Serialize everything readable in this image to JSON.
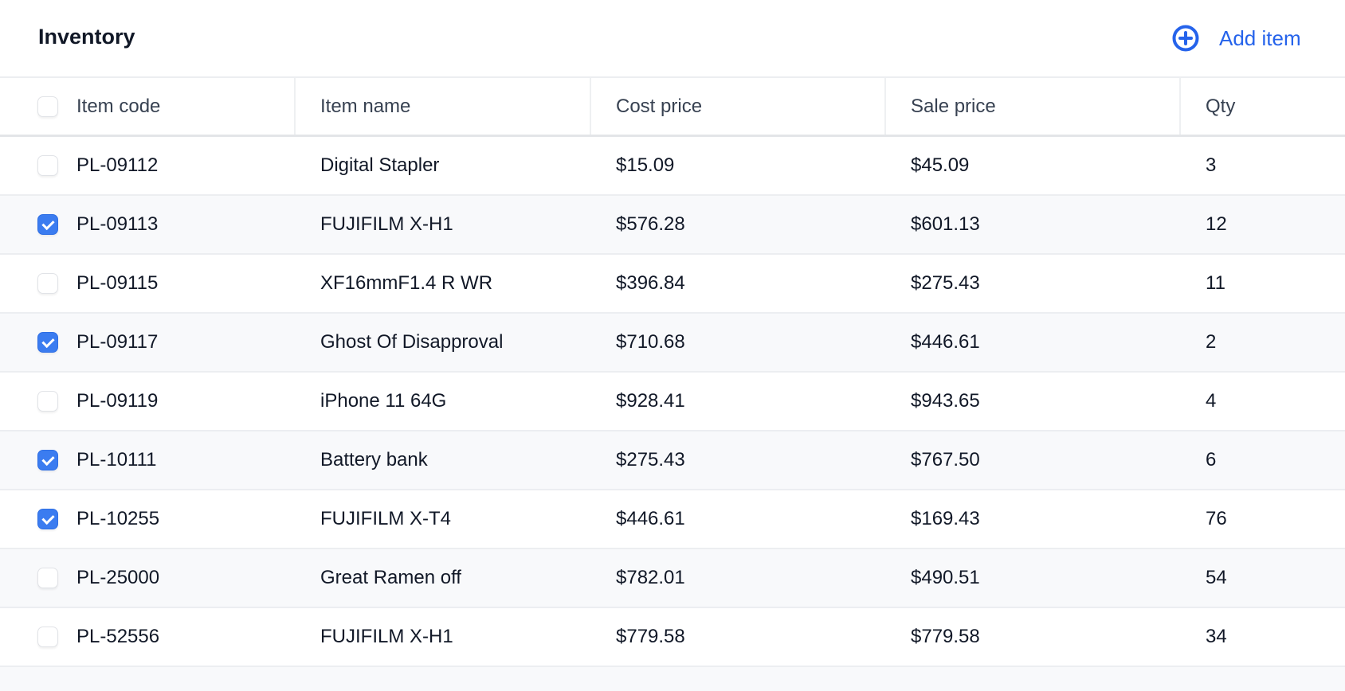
{
  "header": {
    "title": "Inventory",
    "add_label": "Add item",
    "add_icon": "plus-circle-icon",
    "accent": "#2563eb"
  },
  "table": {
    "columns": [
      "Item code",
      "Item name",
      "Cost price",
      "Sale price",
      "Qty"
    ],
    "rows": [
      {
        "checked": false,
        "code": "PL-09112",
        "name": "Digital Stapler",
        "cost": "$15.09",
        "sale": "$45.09",
        "qty": "3"
      },
      {
        "checked": true,
        "code": "PL-09113",
        "name": "FUJIFILM X-H1",
        "cost": "$576.28",
        "sale": "$601.13",
        "qty": "12"
      },
      {
        "checked": false,
        "code": "PL-09115",
        "name": "XF16mmF1.4 R WR",
        "cost": "$396.84",
        "sale": "$275.43",
        "qty": "11"
      },
      {
        "checked": true,
        "code": "PL-09117",
        "name": "Ghost Of Disapproval",
        "cost": "$710.68",
        "sale": "$446.61",
        "qty": "2"
      },
      {
        "checked": false,
        "code": "PL-09119",
        "name": "iPhone 11 64G",
        "cost": "$928.41",
        "sale": "$943.65",
        "qty": "4"
      },
      {
        "checked": true,
        "code": "PL-10111",
        "name": "Battery bank",
        "cost": "$275.43",
        "sale": "$767.50",
        "qty": "6"
      },
      {
        "checked": true,
        "code": "PL-10255",
        "name": "FUJIFILM X-T4",
        "cost": "$446.61",
        "sale": "$169.43",
        "qty": "76"
      },
      {
        "checked": false,
        "code": "PL-25000",
        "name": "Great Ramen off",
        "cost": "$782.01",
        "sale": "$490.51",
        "qty": "54"
      },
      {
        "checked": false,
        "code": "PL-52556",
        "name": "FUJIFILM X-H1",
        "cost": "$779.58",
        "sale": "$779.58",
        "qty": "34"
      }
    ]
  }
}
